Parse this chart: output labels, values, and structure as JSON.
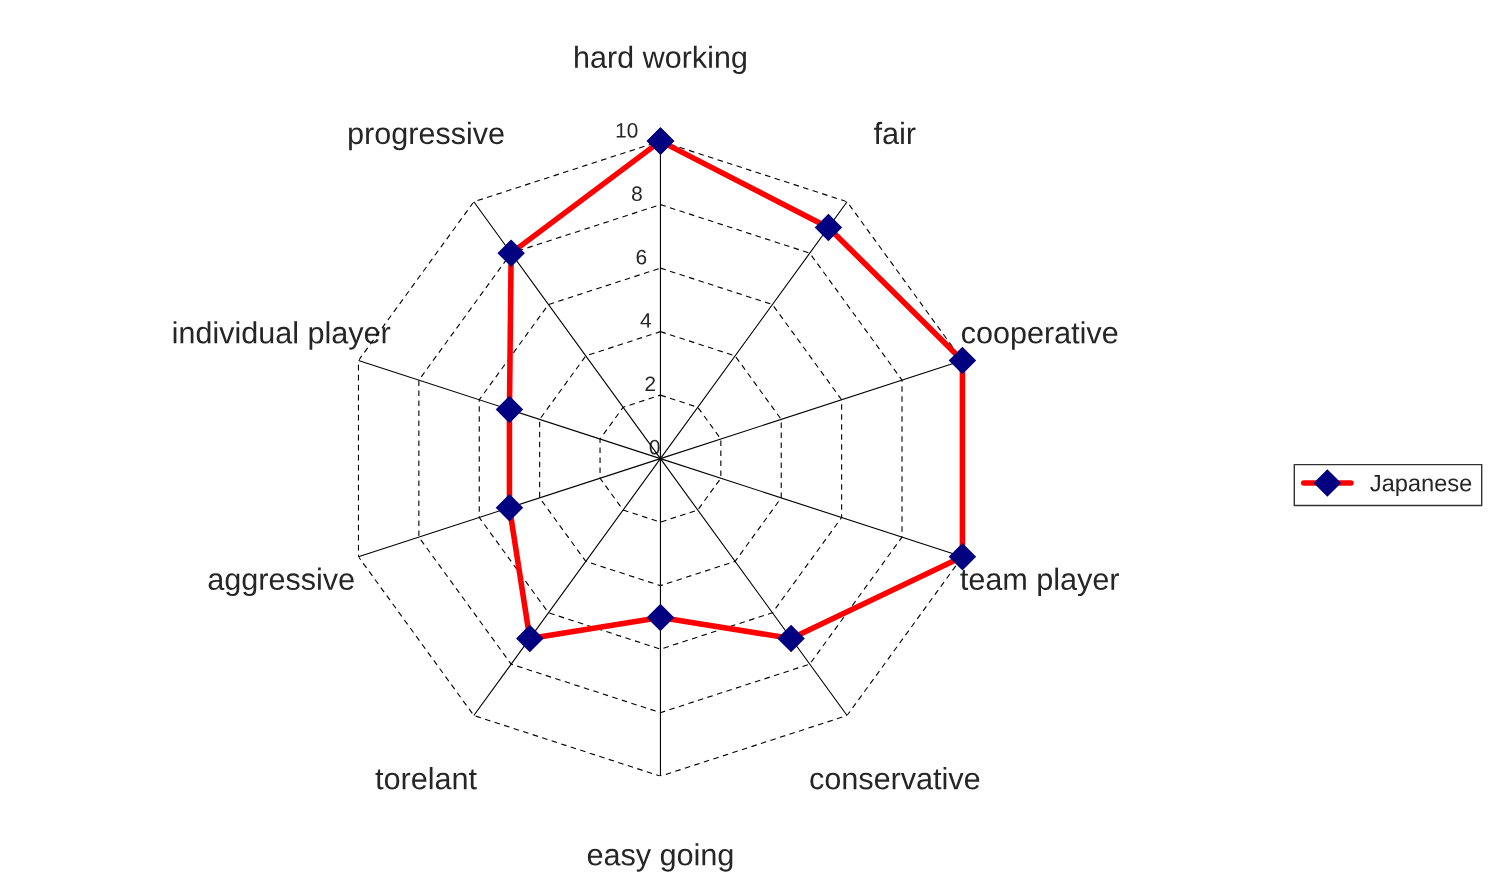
{
  "chart_data": {
    "type": "radar",
    "categories": [
      "hard working",
      "fair",
      "cooperative",
      "team player",
      "conservative",
      "easy going",
      "torelant",
      "aggressive",
      "individual player",
      "progressive"
    ],
    "series": [
      {
        "name": "Japanese",
        "color": "#ff0000",
        "values": [
          10,
          9,
          10,
          10,
          7,
          5,
          7,
          5,
          5,
          8
        ]
      }
    ],
    "ylim": [
      0,
      10
    ],
    "yticks": [
      0,
      2,
      4,
      6,
      8,
      10
    ],
    "grid": true,
    "marker": "diamond",
    "line_style": "solid",
    "legend": "right"
  }
}
